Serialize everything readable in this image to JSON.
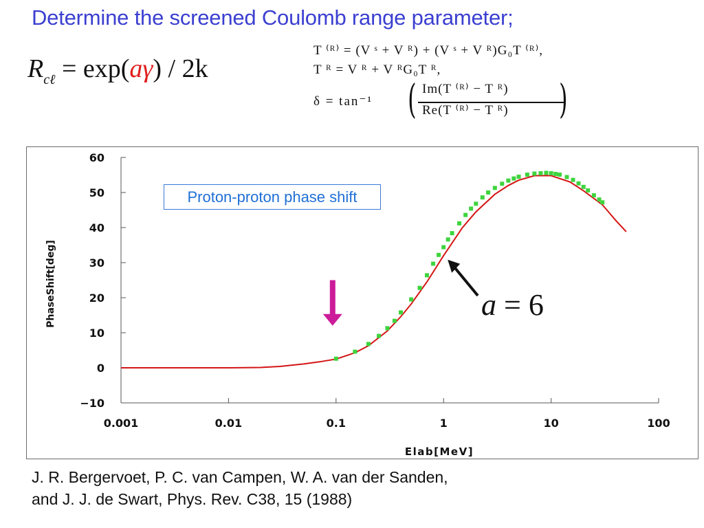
{
  "title": "Determine the screened Coulomb range parameter;",
  "range_formula": {
    "lhs": "R",
    "lhs_sub": "cℓ",
    "rhs_pre": " = exp(",
    "rhs_param": "aγ",
    "rhs_post": ") / 2k"
  },
  "equations": {
    "line1": "T ⁽ᴿ⁾ = (V ˢ + V ᴿ) + (V ˢ + V ᴿ)G₀T ⁽ᴿ⁾,",
    "line2": "T ᴿ = V ᴿ + V ᴿG₀T ᴿ,",
    "line3_lhs": "δ = tan⁻¹",
    "line3_num": "Im(T ⁽ᴿ⁾ − T ᴿ)",
    "line3_den": "Re(T ⁽ᴿ⁾ − T ᴿ)"
  },
  "annotation": {
    "lhs": "a",
    "rhs": " = 6"
  },
  "reference": {
    "line1": "J. R. Bergervoet, P. C. van Campen, W. A. van der Sanden,",
    "line2": "and J. J. de Swart, Phys. Rev. C38, 15 (1988)"
  },
  "colors": {
    "title": "#3b3fd0",
    "theory_curve": "#d41414",
    "data_points": "#3ed43e",
    "arrow_magenta": "#cc1c9a",
    "legend_text": "#1f6fd6"
  },
  "chart_data": {
    "type": "line",
    "title": "Proton-proton  phase shift",
    "xlabel": "Elab[MeV]",
    "ylabel": "PhaseShift[deg]",
    "xscale": "log",
    "xlim": [
      0.001,
      100
    ],
    "ylim": [
      -10,
      60
    ],
    "x_ticks": [
      0.001,
      0.01,
      0.1,
      1,
      10,
      100
    ],
    "x_tick_labels": [
      "0.001",
      "0.01",
      "0.1",
      "1",
      "10",
      "100"
    ],
    "y_ticks": [
      -10,
      0,
      10,
      20,
      30,
      40,
      50,
      60
    ],
    "y_tick_labels": [
      "−10",
      "0",
      "10",
      "20",
      "30",
      "40",
      "50",
      "60"
    ],
    "grid": false,
    "series": [
      {
        "role": "theory",
        "x": [
          0.001,
          0.005,
          0.01,
          0.02,
          0.03,
          0.05,
          0.07,
          0.1,
          0.15,
          0.2,
          0.3,
          0.4,
          0.5,
          0.7,
          1,
          1.5,
          2,
          3,
          4,
          5,
          7,
          10,
          15,
          20,
          30,
          40,
          50
        ],
        "y": [
          0,
          0,
          0,
          0.1,
          0.4,
          1.1,
          1.7,
          2.5,
          4.3,
          6.3,
          10.5,
          14.6,
          18.2,
          24.5,
          32,
          40,
          44.5,
          49.5,
          52,
          53.5,
          54.8,
          54.8,
          53,
          50.5,
          46.5,
          42,
          38.8
        ]
      },
      {
        "role": "data",
        "x": [
          0.1,
          0.15,
          0.2,
          0.25,
          0.3,
          0.35,
          0.4,
          0.5,
          0.6,
          0.7,
          0.8,
          0.9,
          1.0,
          1.1,
          1.2,
          1.4,
          1.6,
          1.8,
          2.0,
          2.3,
          2.6,
          3.0,
          3.5,
          4.0,
          4.5,
          5.0,
          6.0,
          7.0,
          8.0,
          9.0,
          10,
          11,
          12,
          14,
          16,
          18,
          20,
          22,
          25,
          28,
          30
        ],
        "y": [
          2.6,
          4.6,
          6.8,
          9.1,
          11.3,
          13.4,
          15.8,
          19.5,
          22.8,
          26.4,
          29.7,
          32.2,
          34.4,
          36.6,
          38.4,
          41.2,
          43.6,
          45.4,
          46.8,
          48.6,
          50,
          51.3,
          52.5,
          53.4,
          54,
          54.5,
          55.1,
          55.4,
          55.5,
          55.6,
          55.5,
          55.3,
          55.1,
          54.4,
          53.6,
          52.6,
          51.6,
          50.6,
          49.2,
          48,
          47.2
        ]
      }
    ],
    "arrows": [
      {
        "role": "marker",
        "x": 0.1,
        "y_from": 25,
        "y_to": 12
      },
      {
        "role": "annotation",
        "x": 1.0,
        "y": 32,
        "label": "a = 6"
      }
    ]
  }
}
